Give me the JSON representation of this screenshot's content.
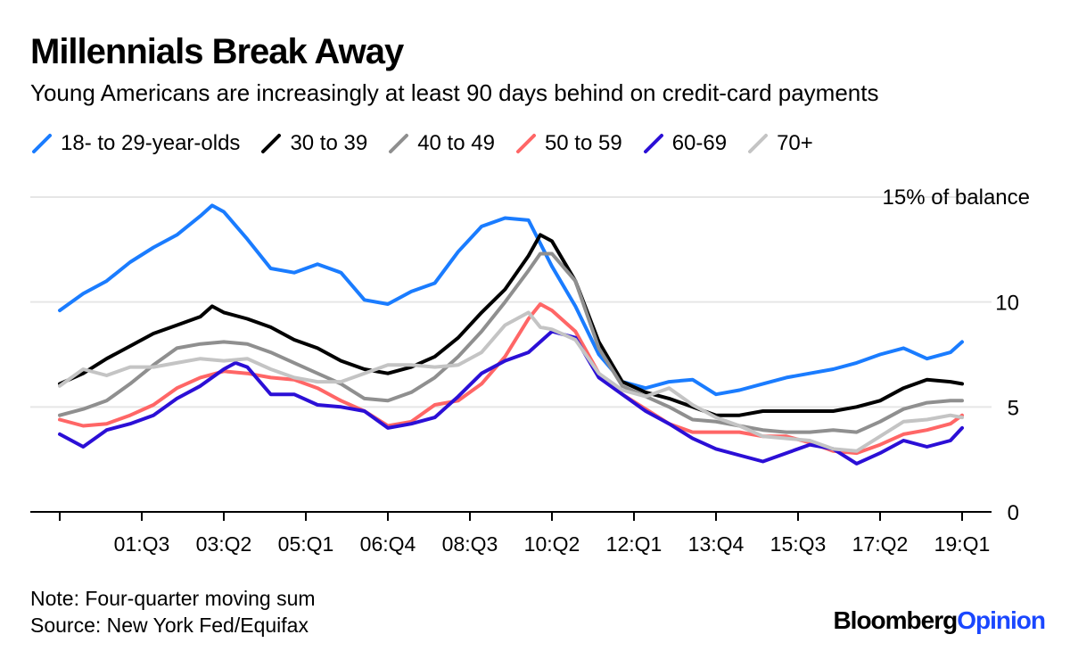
{
  "chart_data": {
    "type": "line",
    "title": "Millennials Break Away",
    "subtitle": "Young Americans are increasingly at least 90 days behind on credit-card payments",
    "xlabel": "",
    "ylabel": "",
    "y_top_label": "15% of balance",
    "ylim": [
      0,
      15
    ],
    "yticks": [
      0,
      5,
      10
    ],
    "xlim": [
      1999.75,
      2019.25
    ],
    "x_tick_labels": [
      "01:Q3",
      "03:Q2",
      "05:Q1",
      "06:Q4",
      "08:Q3",
      "10:Q2",
      "12:Q1",
      "13:Q4",
      "15:Q3",
      "17:Q2",
      "19:Q1"
    ],
    "x_tick_positions": [
      2001.5,
      2003.25,
      2005.0,
      2006.75,
      2008.5,
      2010.25,
      2012.0,
      2013.75,
      2015.5,
      2017.25,
      2019.0
    ],
    "legend_position": "top-left",
    "grid": true,
    "series": [
      {
        "name": "18- to 29-year-olds",
        "color": "#1a7cff",
        "x": [
          1999.75,
          2000.25,
          2000.75,
          2001.25,
          2001.75,
          2002.25,
          2002.75,
          2003.0,
          2003.25,
          2003.75,
          2004.25,
          2004.75,
          2005.25,
          2005.75,
          2006.25,
          2006.75,
          2007.25,
          2007.75,
          2008.25,
          2008.75,
          2009.25,
          2009.75,
          2010.25,
          2010.75,
          2011.25,
          2011.75,
          2012.25,
          2012.75,
          2013.25,
          2013.75,
          2014.25,
          2014.75,
          2015.25,
          2015.75,
          2016.25,
          2016.75,
          2017.25,
          2017.75,
          2018.25,
          2018.75,
          2019.0
        ],
        "y": [
          9.6,
          10.4,
          11.0,
          11.9,
          12.6,
          13.2,
          14.1,
          14.6,
          14.3,
          13.0,
          11.6,
          11.4,
          11.8,
          11.4,
          10.1,
          9.9,
          10.5,
          10.9,
          12.4,
          13.6,
          14.0,
          13.9,
          11.7,
          9.8,
          7.5,
          6.2,
          5.9,
          6.2,
          6.3,
          5.6,
          5.8,
          6.1,
          6.4,
          6.6,
          6.8,
          7.1,
          7.5,
          7.8,
          7.3,
          7.6,
          8.1
        ]
      },
      {
        "name": "30 to 39",
        "color": "#000000",
        "x": [
          1999.75,
          2000.25,
          2000.75,
          2001.25,
          2001.75,
          2002.25,
          2002.75,
          2003.0,
          2003.25,
          2003.75,
          2004.25,
          2004.75,
          2005.25,
          2005.75,
          2006.25,
          2006.75,
          2007.25,
          2007.75,
          2008.25,
          2008.75,
          2009.25,
          2009.75,
          2010.0,
          2010.25,
          2010.75,
          2011.25,
          2011.75,
          2012.25,
          2012.75,
          2013.25,
          2013.75,
          2014.25,
          2014.75,
          2015.25,
          2015.75,
          2016.25,
          2016.75,
          2017.25,
          2017.75,
          2018.25,
          2018.75,
          2019.0
        ],
        "y": [
          6.1,
          6.6,
          7.3,
          7.9,
          8.5,
          8.9,
          9.3,
          9.8,
          9.5,
          9.2,
          8.8,
          8.2,
          7.8,
          7.2,
          6.8,
          6.6,
          6.9,
          7.4,
          8.3,
          9.5,
          10.6,
          12.2,
          13.2,
          12.9,
          11.0,
          8.1,
          6.2,
          5.7,
          5.4,
          5.0,
          4.6,
          4.6,
          4.8,
          4.8,
          4.8,
          4.8,
          5.0,
          5.3,
          5.9,
          6.3,
          6.2,
          6.1
        ]
      },
      {
        "name": "40 to 49",
        "color": "#8f8f8f",
        "x": [
          1999.75,
          2000.25,
          2000.75,
          2001.25,
          2001.75,
          2002.25,
          2002.75,
          2003.25,
          2003.75,
          2004.25,
          2004.75,
          2005.25,
          2005.75,
          2006.25,
          2006.75,
          2007.25,
          2007.75,
          2008.25,
          2008.75,
          2009.25,
          2009.75,
          2010.0,
          2010.25,
          2010.75,
          2011.25,
          2011.75,
          2012.25,
          2012.75,
          2013.25,
          2013.75,
          2014.25,
          2014.75,
          2015.25,
          2015.75,
          2016.25,
          2016.75,
          2017.25,
          2017.75,
          2018.25,
          2018.75,
          2019.0
        ],
        "y": [
          4.6,
          4.9,
          5.3,
          6.1,
          7.0,
          7.8,
          8.0,
          8.1,
          8.0,
          7.6,
          7.1,
          6.6,
          6.1,
          5.4,
          5.3,
          5.7,
          6.4,
          7.4,
          8.6,
          10.0,
          11.5,
          12.3,
          12.3,
          11.0,
          7.8,
          6.0,
          5.5,
          5.0,
          4.4,
          4.3,
          4.1,
          3.9,
          3.8,
          3.8,
          3.9,
          3.8,
          4.3,
          4.9,
          5.2,
          5.3,
          5.3
        ]
      },
      {
        "name": "50 to 59",
        "color": "#ff6666",
        "x": [
          1999.75,
          2000.25,
          2000.75,
          2001.25,
          2001.75,
          2002.25,
          2002.75,
          2003.25,
          2003.75,
          2004.25,
          2004.75,
          2005.25,
          2005.75,
          2006.25,
          2006.75,
          2007.25,
          2007.75,
          2008.25,
          2008.75,
          2009.25,
          2009.75,
          2010.0,
          2010.25,
          2010.75,
          2011.25,
          2011.75,
          2012.25,
          2012.75,
          2013.25,
          2013.75,
          2014.25,
          2014.75,
          2015.25,
          2015.75,
          2016.25,
          2016.75,
          2017.25,
          2017.75,
          2018.25,
          2018.75,
          2019.0
        ],
        "y": [
          4.4,
          4.1,
          4.2,
          4.6,
          5.1,
          5.9,
          6.4,
          6.7,
          6.6,
          6.4,
          6.3,
          5.9,
          5.3,
          4.8,
          4.1,
          4.3,
          5.1,
          5.3,
          6.1,
          7.4,
          9.2,
          9.9,
          9.6,
          8.6,
          6.6,
          5.6,
          4.9,
          4.2,
          3.8,
          3.8,
          3.8,
          3.6,
          3.6,
          3.3,
          2.9,
          2.8,
          3.2,
          3.7,
          3.9,
          4.2,
          4.6
        ]
      },
      {
        "name": "60-69",
        "color": "#2b0fd6",
        "x": [
          1999.75,
          2000.25,
          2000.75,
          2001.25,
          2001.75,
          2002.25,
          2002.75,
          2003.25,
          2003.5,
          2003.75,
          2004.25,
          2004.75,
          2005.25,
          2005.75,
          2006.25,
          2006.75,
          2007.25,
          2007.75,
          2008.25,
          2008.75,
          2009.25,
          2009.75,
          2010.25,
          2010.75,
          2011.25,
          2011.75,
          2012.25,
          2012.75,
          2013.25,
          2013.75,
          2014.25,
          2014.75,
          2015.25,
          2015.75,
          2016.25,
          2016.75,
          2017.25,
          2017.75,
          2018.25,
          2018.75,
          2019.0
        ],
        "y": [
          3.7,
          3.1,
          3.9,
          4.2,
          4.6,
          5.4,
          6.0,
          6.8,
          7.1,
          6.9,
          5.6,
          5.6,
          5.1,
          5.0,
          4.8,
          4.0,
          4.2,
          4.5,
          5.5,
          6.6,
          7.2,
          7.6,
          8.6,
          8.3,
          6.4,
          5.6,
          4.8,
          4.2,
          3.5,
          3.0,
          2.7,
          2.4,
          2.8,
          3.2,
          3.0,
          2.3,
          2.8,
          3.4,
          3.1,
          3.4,
          4.0
        ]
      },
      {
        "name": "70+",
        "color": "#c4c4c4",
        "x": [
          1999.75,
          2000.25,
          2000.75,
          2001.25,
          2001.75,
          2002.25,
          2002.75,
          2003.25,
          2003.75,
          2004.25,
          2004.75,
          2005.25,
          2005.75,
          2006.25,
          2006.75,
          2007.25,
          2007.75,
          2008.25,
          2008.75,
          2009.25,
          2009.75,
          2010.0,
          2010.25,
          2010.75,
          2011.25,
          2011.75,
          2012.25,
          2012.75,
          2013.25,
          2013.75,
          2014.25,
          2014.75,
          2015.25,
          2015.75,
          2016.25,
          2016.75,
          2017.25,
          2017.75,
          2018.25,
          2018.75,
          2019.0
        ],
        "y": [
          6.0,
          6.8,
          6.5,
          6.9,
          6.9,
          7.1,
          7.3,
          7.2,
          7.3,
          6.8,
          6.4,
          6.2,
          6.2,
          6.6,
          7.0,
          7.0,
          6.9,
          7.0,
          7.6,
          8.9,
          9.5,
          8.8,
          8.7,
          8.2,
          6.6,
          5.8,
          5.5,
          5.9,
          5.1,
          4.5,
          4.1,
          3.6,
          3.5,
          3.4,
          3.0,
          2.9,
          3.6,
          4.3,
          4.4,
          4.6,
          4.5
        ]
      }
    ]
  },
  "note": "Note: Four-quarter moving sum",
  "source": "Source: New York Fed/Equifax",
  "brand": {
    "part1": "Bloomberg",
    "part2": "Opinion"
  }
}
